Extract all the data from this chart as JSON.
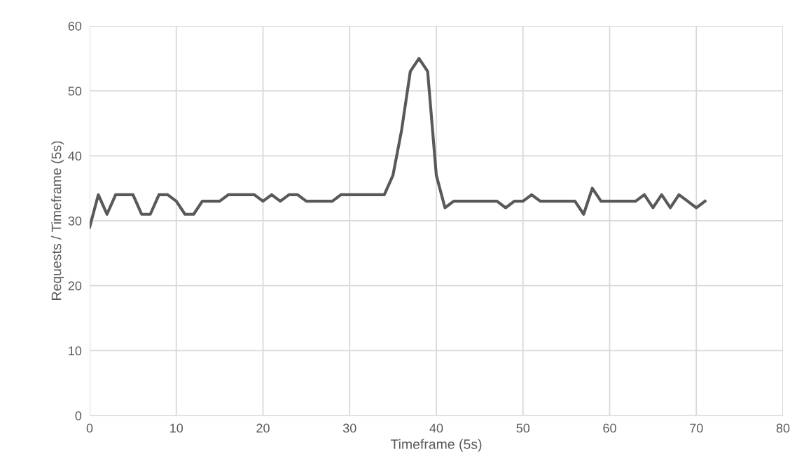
{
  "chart_data": {
    "type": "line",
    "xlabel": "Timeframe (5s)",
    "ylabel": "Requests / Timeframe (5s)",
    "x": [
      0,
      1,
      2,
      3,
      4,
      5,
      6,
      7,
      8,
      9,
      10,
      11,
      12,
      13,
      14,
      15,
      16,
      17,
      18,
      19,
      20,
      21,
      22,
      23,
      24,
      25,
      26,
      27,
      28,
      29,
      30,
      31,
      32,
      33,
      34,
      35,
      36,
      37,
      38,
      39,
      40,
      41,
      42,
      43,
      44,
      45,
      46,
      47,
      48,
      49,
      50,
      51,
      52,
      53,
      54,
      55,
      56,
      57,
      58,
      59,
      60,
      61,
      62,
      63,
      64,
      65,
      66,
      67,
      68,
      69,
      70,
      71
    ],
    "series": [
      {
        "color": "#595959",
        "values": [
          29,
          34,
          31,
          34,
          34,
          34,
          31,
          31,
          34,
          34,
          33,
          31,
          31,
          33,
          33,
          33,
          34,
          34,
          34,
          34,
          33,
          34,
          33,
          34,
          34,
          33,
          33,
          33,
          33,
          34,
          34,
          34,
          34,
          34,
          34,
          37,
          44,
          53,
          55,
          53,
          37,
          32,
          33,
          33,
          33,
          33,
          33,
          33,
          32,
          33,
          33,
          34,
          33,
          33,
          33,
          33,
          33,
          31,
          35,
          33,
          33,
          33,
          33,
          33,
          34,
          32,
          34,
          32,
          34,
          33,
          32,
          33
        ]
      }
    ],
    "xlim": [
      0,
      80
    ],
    "xticks": [
      0,
      10,
      20,
      30,
      40,
      50,
      60,
      70,
      80
    ],
    "ylim": [
      0,
      60
    ],
    "yticks": [
      0,
      10,
      20,
      30,
      40,
      50,
      60
    ],
    "grid": true,
    "marker": "none",
    "line_style": "solid",
    "legend": false
  }
}
